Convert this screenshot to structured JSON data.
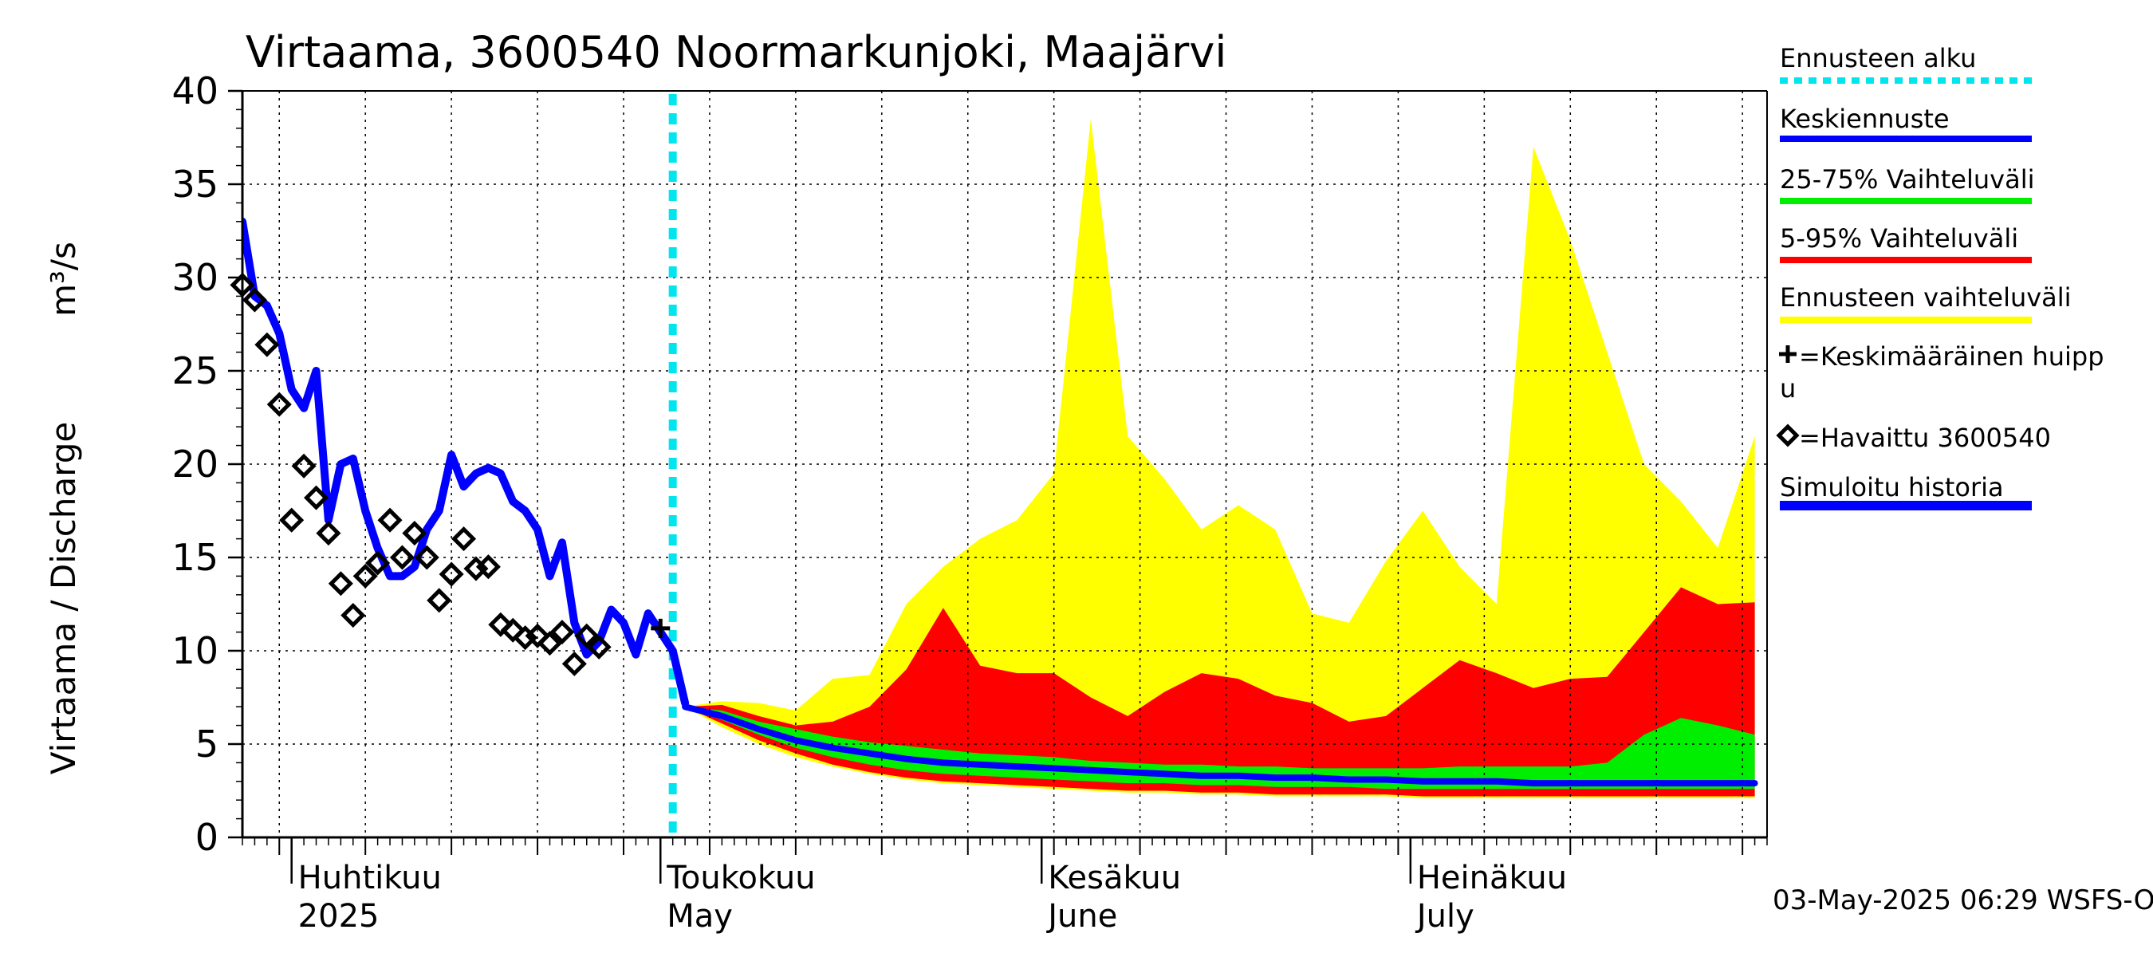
{
  "chart_data": {
    "type": "area",
    "title": "Virtaama, 3600540 Noormarkunjoki, Maajärvi",
    "ylabel": "Virtaama / Discharge",
    "yunit": "m³/s",
    "ylim": [
      0,
      40
    ],
    "yticks": [
      0,
      5,
      10,
      15,
      20,
      25,
      30,
      35,
      40
    ],
    "xlim": [
      "2025-03-28",
      "2025-07-30"
    ],
    "grid": true,
    "legend_position": "right",
    "footer": "03-May-2025 06:29 WSFS-O",
    "month_labels": [
      {
        "date": "2025-04-01",
        "fi": "Huhtikuu",
        "en": "2025"
      },
      {
        "date": "2025-05-01",
        "fi": "Toukokuu",
        "en": "May"
      },
      {
        "date": "2025-06-01",
        "fi": "Kesäkuu",
        "en": "June"
      },
      {
        "date": "2025-07-01",
        "fi": "Heinäkuu",
        "en": "July"
      }
    ],
    "forecast_start": "2025-05-02",
    "legend": [
      {
        "label": "Ennusteen alku",
        "color": "#00e5ee",
        "style": "dotted"
      },
      {
        "label": "Keskiennuste",
        "color": "#0000ff",
        "style": "line"
      },
      {
        "label": "25-75% Vaihteluväli",
        "color": "#00ee00",
        "style": "line"
      },
      {
        "label": "5-95% Vaihteluväli",
        "color": "#ff0000",
        "style": "line"
      },
      {
        "label": "Ennusteen vaihteluväli",
        "color": "#ffff00",
        "style": "line"
      },
      {
        "label": "=Keskimääräinen huippu",
        "color": "#000000",
        "style": "plus"
      },
      {
        "label": "=Havaittu 3600540",
        "color": "#000000",
        "style": "diamond"
      },
      {
        "label": "Simuloitu historia",
        "color": "#0000ff",
        "style": "thick"
      }
    ],
    "simulated_history": [
      [
        "2025-03-28",
        33.0
      ],
      [
        "2025-03-29",
        29.0
      ],
      [
        "2025-03-30",
        28.5
      ],
      [
        "2025-03-31",
        27.0
      ],
      [
        "2025-04-01",
        24.0
      ],
      [
        "2025-04-02",
        23.0
      ],
      [
        "2025-04-03",
        25.0
      ],
      [
        "2025-04-04",
        17.0
      ],
      [
        "2025-04-05",
        20.0
      ],
      [
        "2025-04-06",
        20.3
      ],
      [
        "2025-04-07",
        17.5
      ],
      [
        "2025-04-08",
        15.5
      ],
      [
        "2025-04-09",
        14.0
      ],
      [
        "2025-04-10",
        14.0
      ],
      [
        "2025-04-11",
        14.5
      ],
      [
        "2025-04-12",
        16.5
      ],
      [
        "2025-04-13",
        17.5
      ],
      [
        "2025-04-14",
        20.5
      ],
      [
        "2025-04-15",
        18.8
      ],
      [
        "2025-04-16",
        19.5
      ],
      [
        "2025-04-17",
        19.8
      ],
      [
        "2025-04-18",
        19.5
      ],
      [
        "2025-04-19",
        18.0
      ],
      [
        "2025-04-20",
        17.5
      ],
      [
        "2025-04-21",
        16.5
      ],
      [
        "2025-04-22",
        14.0
      ],
      [
        "2025-04-23",
        15.8
      ],
      [
        "2025-04-24",
        11.5
      ],
      [
        "2025-04-25",
        9.8
      ],
      [
        "2025-04-26",
        10.5
      ],
      [
        "2025-04-27",
        12.2
      ],
      [
        "2025-04-28",
        11.5
      ],
      [
        "2025-04-29",
        9.8
      ],
      [
        "2025-04-30",
        12.0
      ],
      [
        "2025-05-01",
        11.0
      ],
      [
        "2025-05-02",
        10.0
      ],
      [
        "2025-05-03",
        7.2
      ]
    ],
    "observed": [
      [
        "2025-03-28",
        29.6
      ],
      [
        "2025-03-29",
        28.8
      ],
      [
        "2025-03-30",
        26.4
      ],
      [
        "2025-03-31",
        23.2
      ],
      [
        "2025-04-01",
        17.0
      ],
      [
        "2025-04-02",
        19.9
      ],
      [
        "2025-04-03",
        18.2
      ],
      [
        "2025-04-04",
        16.3
      ],
      [
        "2025-04-05",
        13.6
      ],
      [
        "2025-04-06",
        11.9
      ],
      [
        "2025-04-07",
        14.0
      ],
      [
        "2025-04-08",
        14.7
      ],
      [
        "2025-04-09",
        17.0
      ],
      [
        "2025-04-10",
        15.0
      ],
      [
        "2025-04-11",
        16.3
      ],
      [
        "2025-04-12",
        15.0
      ],
      [
        "2025-04-13",
        12.7
      ],
      [
        "2025-04-14",
        14.1
      ],
      [
        "2025-04-15",
        16.0
      ],
      [
        "2025-04-16",
        14.4
      ],
      [
        "2025-04-17",
        14.5
      ],
      [
        "2025-04-18",
        11.4
      ],
      [
        "2025-04-19",
        11.1
      ],
      [
        "2025-04-20",
        10.7
      ],
      [
        "2025-04-21",
        10.8
      ],
      [
        "2025-04-22",
        10.4
      ],
      [
        "2025-04-23",
        11.0
      ],
      [
        "2025-04-24",
        9.3
      ],
      [
        "2025-04-25",
        10.8
      ],
      [
        "2025-04-26",
        10.2
      ]
    ],
    "mean_peak": [
      [
        "2025-05-01",
        11.2
      ]
    ],
    "forecast": {
      "dates": [
        "2025-05-03",
        "2025-05-06",
        "2025-05-09",
        "2025-05-12",
        "2025-05-15",
        "2025-05-18",
        "2025-05-21",
        "2025-05-24",
        "2025-05-27",
        "2025-05-30",
        "2025-06-02",
        "2025-06-05",
        "2025-06-08",
        "2025-06-11",
        "2025-06-14",
        "2025-06-17",
        "2025-06-20",
        "2025-06-23",
        "2025-06-26",
        "2025-06-29",
        "2025-07-02",
        "2025-07-05",
        "2025-07-08",
        "2025-07-11",
        "2025-07-14",
        "2025-07-17",
        "2025-07-20",
        "2025-07-23",
        "2025-07-26",
        "2025-07-29"
      ],
      "median": [
        7.0,
        6.5,
        5.8,
        5.2,
        4.8,
        4.5,
        4.2,
        4.0,
        3.9,
        3.8,
        3.7,
        3.6,
        3.5,
        3.4,
        3.3,
        3.3,
        3.2,
        3.2,
        3.1,
        3.1,
        3.0,
        3.0,
        3.0,
        2.9,
        2.9,
        2.9,
        2.9,
        2.9,
        2.9,
        2.9
      ],
      "p25": [
        7.0,
        6.3,
        5.5,
        4.8,
        4.3,
        3.9,
        3.6,
        3.4,
        3.3,
        3.2,
        3.1,
        3.0,
        2.9,
        2.9,
        2.8,
        2.8,
        2.7,
        2.7,
        2.7,
        2.6,
        2.6,
        2.6,
        2.6,
        2.6,
        2.6,
        2.6,
        2.6,
        2.6,
        2.6,
        2.6
      ],
      "p75": [
        7.0,
        6.8,
        6.2,
        5.8,
        5.4,
        5.1,
        4.9,
        4.7,
        4.5,
        4.4,
        4.3,
        4.1,
        4.0,
        3.9,
        3.9,
        3.8,
        3.8,
        3.7,
        3.7,
        3.7,
        3.7,
        3.8,
        3.8,
        3.8,
        3.8,
        4.0,
        5.5,
        6.4,
        6.0,
        5.5
      ],
      "p5": [
        7.0,
        6.1,
        5.2,
        4.5,
        3.9,
        3.5,
        3.2,
        3.0,
        2.9,
        2.8,
        2.7,
        2.6,
        2.5,
        2.5,
        2.4,
        2.4,
        2.3,
        2.3,
        2.3,
        2.3,
        2.2,
        2.2,
        2.2,
        2.2,
        2.2,
        2.2,
        2.2,
        2.2,
        2.2,
        2.2
      ],
      "p95": [
        7.0,
        7.1,
        6.5,
        6.0,
        6.2,
        7.0,
        9.0,
        12.3,
        9.2,
        8.8,
        8.8,
        7.5,
        6.5,
        7.8,
        8.8,
        8.5,
        7.6,
        7.2,
        6.2,
        6.5,
        8.0,
        9.5,
        8.8,
        8.0,
        8.5,
        8.6,
        11.0,
        13.4,
        12.5,
        12.6
      ],
      "min": [
        7.0,
        5.9,
        5.0,
        4.3,
        3.8,
        3.4,
        3.1,
        2.9,
        2.8,
        2.7,
        2.6,
        2.5,
        2.4,
        2.4,
        2.3,
        2.3,
        2.2,
        2.2,
        2.2,
        2.2,
        2.1,
        2.1,
        2.1,
        2.1,
        2.1,
        2.1,
        2.1,
        2.1,
        2.1,
        2.1
      ],
      "max": [
        7.0,
        7.3,
        7.2,
        6.8,
        8.5,
        8.7,
        12.5,
        14.5,
        16.0,
        17.0,
        19.5,
        38.5,
        21.5,
        19.2,
        16.5,
        17.8,
        16.5,
        12.0,
        11.5,
        14.8,
        17.5,
        14.5,
        12.5,
        37.0,
        32.0,
        26.0,
        20.0,
        18.0,
        15.5,
        21.5
      ]
    }
  }
}
